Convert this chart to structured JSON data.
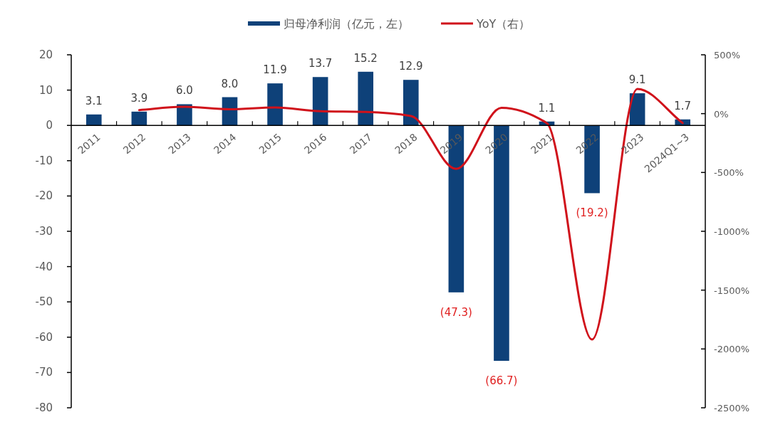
{
  "chart_data": {
    "type": "bar",
    "legend": "top",
    "categories": [
      "2011",
      "2012",
      "2013",
      "2014",
      "2015",
      "2016",
      "2017",
      "2018",
      "2019",
      "2020",
      "2021",
      "2022",
      "2023",
      "2024Q1~3"
    ],
    "series": [
      {
        "name": "归母净利润（亿元，左）",
        "color": "#0e4179",
        "values": [
          3.1,
          3.9,
          6.0,
          8.0,
          11.9,
          13.7,
          15.2,
          12.9,
          -47.3,
          -66.7,
          1.1,
          -19.2,
          9.1,
          1.7
        ],
        "value_labels": [
          "3.1",
          "3.9",
          "6.0",
          "8.0",
          "11.9",
          "13.7",
          "15.2",
          "12.9",
          "(47.3)",
          "(66.7)",
          "1.1",
          "(19.2)",
          "9.1",
          "1.7"
        ]
      },
      {
        "name": "YoY（右）",
        "type": "line",
        "axis": "y2",
        "color": "#d0121b",
        "values": [
          null,
          30,
          58,
          37,
          52,
          21,
          14,
          -20,
          -470,
          50,
          -80,
          -1920,
          210,
          -80
        ]
      }
    ],
    "ylim": [
      -80,
      20
    ],
    "yticks": [
      -80,
      -70,
      -60,
      -50,
      -40,
      -30,
      -20,
      -10,
      0,
      10,
      20
    ],
    "y2lim": [
      -2500,
      500
    ],
    "y2ticks": [
      {
        "value": -2500,
        "label": "-2500%"
      },
      {
        "value": -2000,
        "label": "-2000%"
      },
      {
        "value": -1500,
        "label": "-1500%"
      },
      {
        "value": -1000,
        "label": "-1000%"
      },
      {
        "value": -500,
        "label": "-500%"
      },
      {
        "value": 0,
        "label": "0%"
      },
      {
        "value": 500,
        "label": "500%"
      }
    ]
  }
}
